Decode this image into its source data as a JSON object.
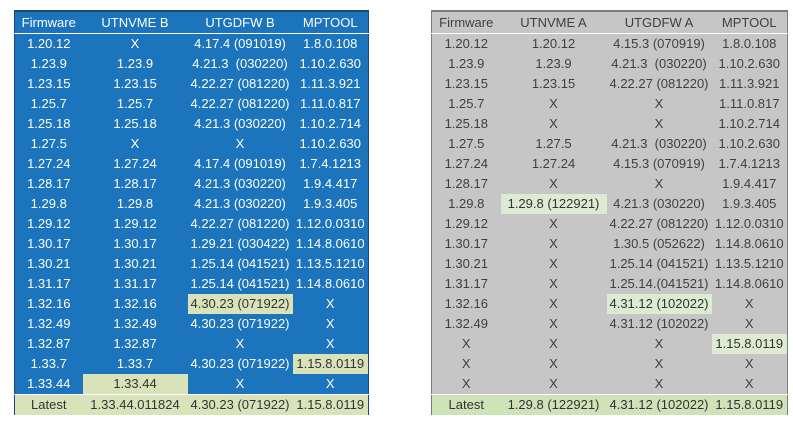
{
  "tables": [
    {
      "name": "firmware-table-b",
      "headers": [
        "Firmware",
        "UTNVME B",
        "UTGDFW B",
        "MPTOOL"
      ],
      "style": {
        "bg": "#1b74bc",
        "text": "#ffffff",
        "border": "#174a75",
        "highlight_bg": "#d9e3ba",
        "highlight_text": "#333333",
        "latest_bg": "#d9e3ba",
        "latest_text": "#333333"
      },
      "rows": [
        {
          "cells": [
            "1.20.12",
            "X",
            "4.17.4 (091019)",
            "1.8.0.108"
          ]
        },
        {
          "cells": [
            "1.23.9",
            "1.23.9",
            "4.21.3  (030220)",
            "1.10.2.630"
          ]
        },
        {
          "cells": [
            "1.23.15",
            "1.23.15",
            "4.22.27 (081220)",
            "1.11.3.921"
          ]
        },
        {
          "cells": [
            "1.25.7",
            "1.25.7",
            "4.22.27 (081220)",
            "1.11.0.817"
          ]
        },
        {
          "cells": [
            "1.25.18",
            "1.25.18",
            "4.21.3 (030220)",
            "1.10.2.714"
          ]
        },
        {
          "cells": [
            "1.27.5",
            "X",
            "X",
            "1.10.2.630"
          ]
        },
        {
          "cells": [
            "1.27.24",
            "1.27.24",
            "4.17.4 (091019)",
            "1.7.4.1213"
          ]
        },
        {
          "cells": [
            "1.28.17",
            "1.28.17",
            "4.21.3 (030220)",
            "1.9.4.417"
          ]
        },
        {
          "cells": [
            "1.29.8",
            "1.29.8",
            "4.21.3 (030220)",
            "1.9.3.405"
          ]
        },
        {
          "cells": [
            "1.29.12",
            "1.29.12",
            "4.22.27 (081220)",
            "1.12.0.0310"
          ]
        },
        {
          "cells": [
            "1.30.17",
            "1.30.17",
            "1.29.21 (030422)",
            "1.14.8.0610"
          ]
        },
        {
          "cells": [
            "1.30.21",
            "1.30.21",
            "1.25.14 (041521)",
            "1.13.5.1210"
          ]
        },
        {
          "cells": [
            "1.31.17",
            "1.31.17",
            "1.25.14 (041521)",
            "1.14.8.0610"
          ]
        },
        {
          "cells": [
            "1.32.16",
            "1.32.16",
            "4.30.23 (071922)",
            "X"
          ],
          "highlight_cols": [
            2
          ]
        },
        {
          "cells": [
            "1.32.49",
            "1.32.49",
            "4.30.23 (071922)",
            "X"
          ]
        },
        {
          "cells": [
            "1.32.87",
            "1.32.87",
            "X",
            "X"
          ]
        },
        {
          "cells": [
            "1.33.7",
            "1.33.7",
            "4.30.23 (071922)",
            "1.15.8.0119"
          ],
          "highlight_cols": [
            3
          ]
        },
        {
          "cells": [
            "1.33.44",
            "1.33.44",
            "X",
            "X"
          ],
          "highlight_cols": [
            1
          ]
        },
        {
          "cells": [
            "Latest",
            "1.33.44.011824",
            "4.30.23 (071922)",
            "1.15.8.0119"
          ],
          "is_latest": true
        }
      ]
    },
    {
      "name": "firmware-table-a",
      "headers": [
        "Firmware",
        "UTNVME A",
        "UTGDFW A",
        "MPTOOL"
      ],
      "style": {
        "bg": "#c6c6c6",
        "text": "#3f3f3f",
        "border": "#7c7c7c",
        "highlight_bg": "#dcebd2",
        "highlight_text": "#333333",
        "latest_bg": "#cfe3b8",
        "latest_text": "#333333"
      },
      "rows": [
        {
          "cells": [
            "1.20.12",
            "1.20.12",
            "4.15.3 (070919)",
            "1.8.0.108"
          ]
        },
        {
          "cells": [
            "1.23.9",
            "1.23.9",
            "4.21.3  (030220)",
            "1.10.2.630"
          ]
        },
        {
          "cells": [
            "1.23.15",
            "1.23.15",
            "4.22.27 (081220)",
            "1.11.3.921"
          ]
        },
        {
          "cells": [
            "1.25.7",
            "X",
            "X",
            "1.11.0.817"
          ]
        },
        {
          "cells": [
            "1.25.18",
            "X",
            "X",
            "1.10.2.714"
          ]
        },
        {
          "cells": [
            "1.27.5",
            "1.27.5",
            "4.21.3  (030220)",
            "1.10.2.630"
          ]
        },
        {
          "cells": [
            "1.27.24",
            "1.27.24",
            "4.15.3 (070919)",
            "1.7.4.1213"
          ]
        },
        {
          "cells": [
            "1.28.17",
            "X",
            "X",
            "1.9.4.417"
          ]
        },
        {
          "cells": [
            "1.29.8",
            "1.29.8 (122921)",
            "4.21.3 (030220)",
            "1.9.3.405"
          ],
          "highlight_cols": [
            1
          ]
        },
        {
          "cells": [
            "1.29.12",
            "X",
            "4.22.27 (081220)",
            "1.12.0.0310"
          ]
        },
        {
          "cells": [
            "1.30.17",
            "X",
            "1.30.5 (052622)",
            "1.14.8.0610"
          ]
        },
        {
          "cells": [
            "1.30.21",
            "X",
            "1.25.14 (041521)",
            "1.13.5.1210"
          ]
        },
        {
          "cells": [
            "1.31.17",
            "X",
            "1.25.14.(041521)",
            "1.14.8.0610"
          ]
        },
        {
          "cells": [
            "1.32.16",
            "X",
            "4.31.12 (102022)",
            "X"
          ],
          "highlight_cols": [
            2
          ]
        },
        {
          "cells": [
            "1.32.49",
            "X",
            "4.31.12 (102022)",
            "X"
          ]
        },
        {
          "cells": [
            "X",
            "X",
            "X",
            "1.15.8.0119"
          ],
          "highlight_cols": [
            3
          ]
        },
        {
          "cells": [
            "X",
            "X",
            "X",
            "X"
          ]
        },
        {
          "cells": [
            "X",
            "X",
            "X",
            "X"
          ]
        },
        {
          "cells": [
            "Latest",
            "1.29.8 (122921)",
            "4.31.12 (102022)",
            "1.15.8.0119"
          ],
          "is_latest": true
        }
      ]
    }
  ]
}
